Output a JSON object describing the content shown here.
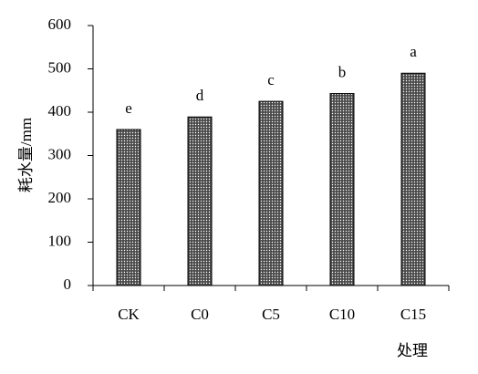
{
  "chart_data": {
    "type": "bar",
    "y_label": "耗水量/mm",
    "x_label": "处理",
    "categories": [
      "CK",
      "C0",
      "C5",
      "C10",
      "C15"
    ],
    "values": [
      360,
      389,
      425,
      443,
      490
    ],
    "letters": [
      "e",
      "d",
      "c",
      "b",
      "a"
    ],
    "color": "#4a4a4a",
    "ylim": [
      0,
      600
    ],
    "yticks": [
      0,
      100,
      200,
      300,
      400,
      500,
      600
    ],
    "grid": false
  }
}
